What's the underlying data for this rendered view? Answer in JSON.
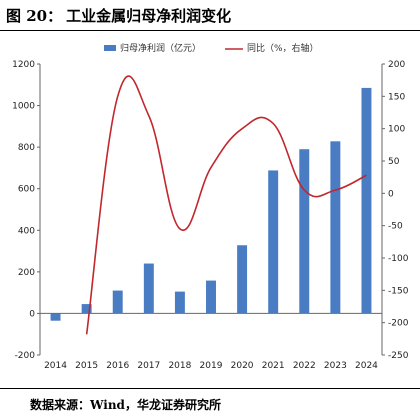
{
  "figure": {
    "label": "图 20：",
    "title": "工业金属归母净利润变化",
    "source": "数据来源：Wind，华龙证券研究所"
  },
  "colors": {
    "bar": "#4a7cc4",
    "line": "#c0282e",
    "axis": "#666666"
  },
  "chart_data": {
    "type": "bar",
    "categories": [
      "2014",
      "2015",
      "2016",
      "2017",
      "2018",
      "2019",
      "2020",
      "2021",
      "2022",
      "2023",
      "2024"
    ],
    "series": [
      {
        "name": "归母净利润（亿元）",
        "type": "bar",
        "axis": "left",
        "values": [
          -35,
          45,
          110,
          240,
          105,
          158,
          328,
          688,
          790,
          828,
          1085
        ]
      },
      {
        "name": "同比（%，右轴）",
        "type": "line",
        "axis": "right",
        "values": [
          null,
          -218,
          150,
          120,
          -55,
          40,
          100,
          108,
          5,
          5,
          28
        ]
      }
    ],
    "ylim_left": [
      -200,
      1200
    ],
    "yticks_left": [
      -200,
      0,
      200,
      400,
      600,
      800,
      1000,
      1200
    ],
    "ylim_right": [
      -250,
      200
    ],
    "yticks_right": [
      -250,
      -200,
      -150,
      -100,
      -50,
      0,
      50,
      100,
      150,
      200
    ],
    "legend_position": "top",
    "grid": false
  }
}
